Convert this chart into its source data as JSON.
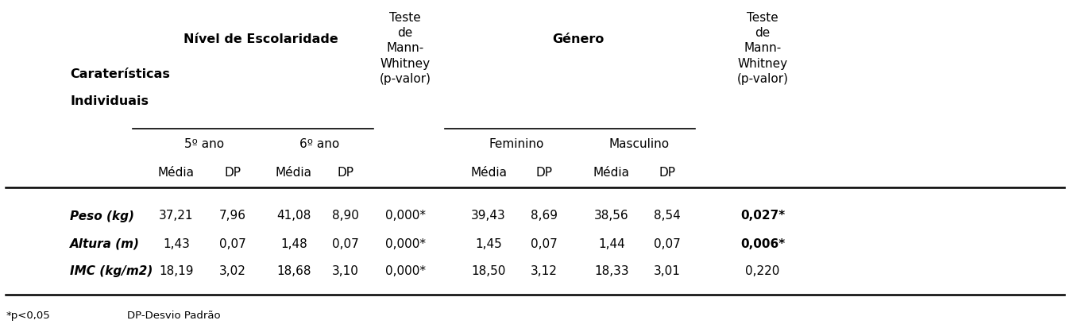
{
  "nesc_label": "Nível de Escolaridade",
  "genero_label": "Género",
  "teste_label": "Teste\nde\nMann-\nWhitney\n(p-valor)",
  "col1_header": "5º ano",
  "col2_header": "6º ano",
  "col3_header": "Feminino",
  "col4_header": "Masculino",
  "row_header_line1": "Caraterísticas",
  "row_header_line2": "Individuais",
  "media_label": "Média",
  "dp_label": "DP",
  "rows": [
    {
      "label": "Peso (kg)",
      "v1": "37,21",
      "v2": "7,96",
      "v3": "41,08",
      "v4": "8,90",
      "p1": "0,000*",
      "v5": "39,43",
      "v6": "8,69",
      "v7": "38,56",
      "v8": "8,54",
      "p2": "0,027*",
      "p2bold": true
    },
    {
      "label": "Altura (m)",
      "v1": "1,43",
      "v2": "0,07",
      "v3": "1,48",
      "v4": "0,07",
      "p1": "0,000*",
      "v5": "1,45",
      "v6": "0,07",
      "v7": "1,44",
      "v8": "0,07",
      "p2": "0,006*",
      "p2bold": true
    },
    {
      "label": "IMC (kg/m2)",
      "v1": "18,19",
      "v2": "3,02",
      "v3": "18,68",
      "v4": "3,10",
      "p1": "0,000*",
      "v5": "18,50",
      "v6": "3,12",
      "v7": "18,33",
      "v8": "3,01",
      "p2": "0,220",
      "p2bold": false
    }
  ],
  "footnote_star": "*p<0,05",
  "footnote_dp": "DP-Desvio Padrão",
  "bg_color": "#ffffff",
  "text_color": "#000000",
  "fs": 11.0,
  "fs_header": 11.5
}
